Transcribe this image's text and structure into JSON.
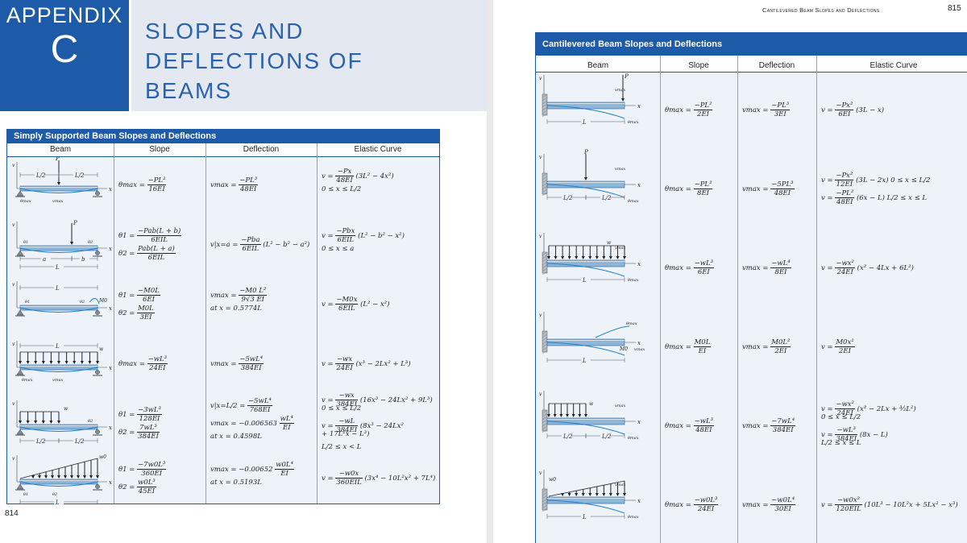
{
  "appendix": {
    "word": "APPENDIX",
    "letter": "C",
    "title_lines": [
      "SLOPES AND",
      "DEFLECTIONS OF",
      "BEAMS"
    ]
  },
  "left_page_number": "814",
  "right_page_number": "815",
  "running_head": "Cantilevered Beam Slopes and Deflections",
  "colors": {
    "accent": "#1d5aa8",
    "table_bg": "#eef3f9",
    "header_bg": "#e4e9f1"
  },
  "simple_table": {
    "title": "Simply Supported Beam Slopes and Deflections",
    "columns": [
      "Beam",
      "Slope",
      "Deflection",
      "Elastic Curve"
    ],
    "rows": [
      {
        "slope": [
          {
            "pre": "θmax =",
            "num": "−PL²",
            "den": "16EI"
          }
        ],
        "deflection": [
          {
            "pre": "vmax =",
            "num": "−PL³",
            "den": "48EI"
          }
        ],
        "curve": [
          {
            "pre": "v =",
            "num": "−Px",
            "den": "48EI",
            "post": "(3L² − 4x²)"
          },
          {
            "text": "0 ≤ x ≤ L/2"
          }
        ]
      },
      {
        "slope": [
          {
            "pre": "θ1 =",
            "num": "−Pab(L + b)",
            "den": "6EIL"
          },
          {
            "pre": "θ2 =",
            "num": "Pab(L + a)",
            "den": "6EIL"
          }
        ],
        "deflection": [
          {
            "pre": "v|x=a =",
            "num": "−Pba",
            "den": "6EIL",
            "post": "(L² − b² − a²)"
          }
        ],
        "curve": [
          {
            "pre": "v =",
            "num": "−Pbx",
            "den": "6EIL",
            "post": "(L² − b² − x²)"
          },
          {
            "text": "0 ≤ x ≤ a"
          }
        ]
      },
      {
        "slope": [
          {
            "pre": "θ1 =",
            "num": "−M0L",
            "den": "6EI"
          },
          {
            "pre": "θ2 =",
            "num": "M0L",
            "den": "3EI"
          }
        ],
        "deflection": [
          {
            "pre": "vmax =",
            "num": "−M0 L²",
            "den": "9√3 EI"
          },
          {
            "text": "at x = 0.5774L"
          }
        ],
        "curve": [
          {
            "pre": "v =",
            "num": "−M0x",
            "den": "6EIL",
            "post": "(L² − x²)"
          }
        ]
      },
      {
        "slope": [
          {
            "pre": "θmax =",
            "num": "−wL³",
            "den": "24EI"
          }
        ],
        "deflection": [
          {
            "pre": "vmax =",
            "num": "−5wL⁴",
            "den": "384EI"
          }
        ],
        "curve": [
          {
            "pre": "v =",
            "num": "−wx",
            "den": "24EI",
            "post": "(x³ − 2Lx² + L³)"
          }
        ]
      },
      {
        "slope": [
          {
            "pre": "θ1 =",
            "num": "−3wL³",
            "den": "128EI"
          },
          {
            "pre": "θ2 =",
            "num": "7wL³",
            "den": "384EI"
          }
        ],
        "deflection": [
          {
            "pre": "v|x=L/2 =",
            "num": "−5wL⁴",
            "den": "768EI"
          },
          {
            "pre": "vmax = −0.006563",
            "num": "wL⁴",
            "den": "EI"
          },
          {
            "text": "at x = 0.4598L"
          }
        ],
        "curve": [
          {
            "pre": "v =",
            "num": "−wx",
            "den": "384EI",
            "post": "(16x³ − 24Lx² + 9L³)"
          },
          {
            "text": "0 ≤ x ≤ L/2"
          },
          {
            "pre": "v =",
            "num": "−wL",
            "den": "384EI",
            "post": "(8x³ − 24Lx²"
          },
          {
            "text": "+ 17L²x − L³)"
          },
          {
            "text": "L/2 ≤ x < L"
          }
        ]
      },
      {
        "slope": [
          {
            "pre": "θ1 =",
            "num": "−7w0L³",
            "den": "360EI"
          },
          {
            "pre": "θ2 =",
            "num": "w0L³",
            "den": "45EI"
          }
        ],
        "deflection": [
          {
            "pre": "vmax = −0.00652",
            "num": "w0L⁴",
            "den": "EI"
          },
          {
            "text": "at x = 0.5193L"
          }
        ],
        "curve": [
          {
            "pre": "v =",
            "num": "−w0x",
            "den": "360EIL",
            "post": "(3x⁴ − 10L²x² + 7L⁴)"
          }
        ]
      }
    ]
  },
  "cant_table": {
    "title": "Cantilevered Beam Slopes and Deflections",
    "columns": [
      "Beam",
      "Slope",
      "Deflection",
      "Elastic Curve"
    ],
    "rows": [
      {
        "slope": [
          {
            "pre": "θmax =",
            "num": "−PL²",
            "den": "2EI"
          }
        ],
        "deflection": [
          {
            "pre": "vmax =",
            "num": "−PL³",
            "den": "3EI"
          }
        ],
        "curve": [
          {
            "pre": "v =",
            "num": "−Px²",
            "den": "6EI",
            "post": "(3L − x)"
          }
        ]
      },
      {
        "slope": [
          {
            "pre": "θmax =",
            "num": "−PL²",
            "den": "8EI"
          }
        ],
        "deflection": [
          {
            "pre": "vmax =",
            "num": "−5PL³",
            "den": "48EI"
          }
        ],
        "curve": [
          {
            "pre": "v =",
            "num": "−Px²",
            "den": "12EI",
            "post": "(3L − 2x)   0 ≤ x ≤ L/2"
          },
          {
            "pre": "v =",
            "num": "−PL²",
            "den": "48EI",
            "post": "(6x − L)   L/2 ≤ x ≤ L"
          }
        ]
      },
      {
        "slope": [
          {
            "pre": "θmax =",
            "num": "−wL³",
            "den": "6EI"
          }
        ],
        "deflection": [
          {
            "pre": "vmax =",
            "num": "−wL⁴",
            "den": "8EI"
          }
        ],
        "curve": [
          {
            "pre": "v =",
            "num": "−wx²",
            "den": "24EI",
            "post": "(x² − 4Lx + 6L²)"
          }
        ]
      },
      {
        "slope": [
          {
            "pre": "θmax =",
            "num": "M0L",
            "den": "EI"
          }
        ],
        "deflection": [
          {
            "pre": "vmax =",
            "num": "M0L²",
            "den": "2EI"
          }
        ],
        "curve": [
          {
            "pre": "v =",
            "num": "M0x²",
            "den": "2EI",
            "post": ""
          }
        ]
      },
      {
        "slope": [
          {
            "pre": "θmax =",
            "num": "−wL³",
            "den": "48EI"
          }
        ],
        "deflection": [
          {
            "pre": "vmax =",
            "num": "−7wL⁴",
            "den": "384EI"
          }
        ],
        "curve": [
          {
            "pre": "v =",
            "num": "−wx²",
            "den": "24EI",
            "post": "(x² − 2Lx + ³⁄₂L²)"
          },
          {
            "text": "0 ≤ x ≤ L/2"
          },
          {
            "pre": "v =",
            "num": "−wL³",
            "den": "384EI",
            "post": "(8x − L)"
          },
          {
            "text": "L/2 ≤ x ≤ L"
          }
        ]
      },
      {
        "slope": [
          {
            "pre": "θmax =",
            "num": "−w0L³",
            "den": "24EI"
          }
        ],
        "deflection": [
          {
            "pre": "vmax =",
            "num": "−w0L⁴",
            "den": "30EI"
          }
        ],
        "curve": [
          {
            "pre": "v =",
            "num": "−w0x²",
            "den": "120EIL",
            "post": "(10L³ − 10L²x + 5Lx² − x³)"
          }
        ]
      }
    ]
  },
  "figure_labels": {
    "P": "P",
    "L": "L",
    "L_half": "L/2",
    "a": "a",
    "b": "b",
    "w": "w",
    "w0": "w0",
    "v": "v",
    "x": "x",
    "theta_max": "θmax",
    "v_max": "vmax",
    "theta1": "θ1",
    "theta2": "θ2",
    "M0": "M0"
  }
}
